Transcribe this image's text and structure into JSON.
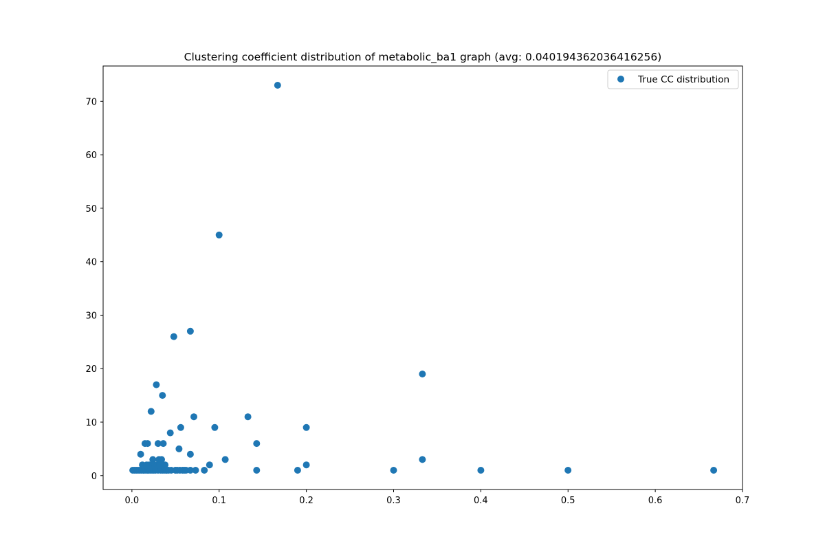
{
  "chart_data": {
    "type": "scatter",
    "title": "Clustering coefficient distribution of metabolic_ba1 graph (avg: 0.040194362036416256)",
    "xlabel": "",
    "ylabel": "",
    "xlim": [
      -0.033,
      0.7
    ],
    "ylim": [
      -2.6,
      76.6
    ],
    "xticks": [
      0.0,
      0.1,
      0.2,
      0.3,
      0.4,
      0.5,
      0.6,
      0.7
    ],
    "xtick_labels": [
      "0.0",
      "0.1",
      "0.2",
      "0.3",
      "0.4",
      "0.5",
      "0.6",
      "0.7"
    ],
    "yticks": [
      0,
      10,
      20,
      30,
      40,
      50,
      60,
      70
    ],
    "ytick_labels": [
      "0",
      "10",
      "20",
      "30",
      "40",
      "50",
      "60",
      "70"
    ],
    "grid": false,
    "legend": {
      "position": "top-right",
      "entries": [
        "True CC distribution"
      ]
    },
    "color": "#1f77b4",
    "series": [
      {
        "name": "True CC distribution",
        "points": [
          [
            0.001,
            1
          ],
          [
            0.003,
            1
          ],
          [
            0.005,
            1
          ],
          [
            0.007,
            1
          ],
          [
            0.009,
            1
          ],
          [
            0.01,
            4
          ],
          [
            0.011,
            1
          ],
          [
            0.012,
            2
          ],
          [
            0.013,
            1
          ],
          [
            0.014,
            1
          ],
          [
            0.015,
            6
          ],
          [
            0.016,
            1
          ],
          [
            0.017,
            2
          ],
          [
            0.018,
            1
          ],
          [
            0.018,
            6
          ],
          [
            0.019,
            1
          ],
          [
            0.02,
            2
          ],
          [
            0.021,
            1
          ],
          [
            0.022,
            12
          ],
          [
            0.023,
            1
          ],
          [
            0.024,
            3
          ],
          [
            0.024,
            2
          ],
          [
            0.025,
            1
          ],
          [
            0.026,
            2
          ],
          [
            0.027,
            1
          ],
          [
            0.028,
            17
          ],
          [
            0.029,
            2
          ],
          [
            0.03,
            6
          ],
          [
            0.03,
            1
          ],
          [
            0.031,
            3
          ],
          [
            0.032,
            2
          ],
          [
            0.033,
            1
          ],
          [
            0.034,
            3
          ],
          [
            0.035,
            15
          ],
          [
            0.035,
            1
          ],
          [
            0.036,
            6
          ],
          [
            0.037,
            1
          ],
          [
            0.038,
            2
          ],
          [
            0.039,
            1
          ],
          [
            0.04,
            1
          ],
          [
            0.042,
            1
          ],
          [
            0.044,
            8
          ],
          [
            0.045,
            1
          ],
          [
            0.048,
            26
          ],
          [
            0.05,
            1
          ],
          [
            0.052,
            1
          ],
          [
            0.054,
            5
          ],
          [
            0.055,
            1
          ],
          [
            0.056,
            9
          ],
          [
            0.058,
            1
          ],
          [
            0.06,
            1
          ],
          [
            0.062,
            1
          ],
          [
            0.067,
            27
          ],
          [
            0.067,
            4
          ],
          [
            0.067,
            1
          ],
          [
            0.071,
            11
          ],
          [
            0.073,
            1
          ],
          [
            0.083,
            1
          ],
          [
            0.089,
            2
          ],
          [
            0.095,
            9
          ],
          [
            0.1,
            45
          ],
          [
            0.107,
            3
          ],
          [
            0.133,
            11
          ],
          [
            0.143,
            6
          ],
          [
            0.143,
            1
          ],
          [
            0.167,
            73
          ],
          [
            0.19,
            1
          ],
          [
            0.2,
            9
          ],
          [
            0.2,
            2
          ],
          [
            0.3,
            1
          ],
          [
            0.333,
            19
          ],
          [
            0.333,
            3
          ],
          [
            0.4,
            1
          ],
          [
            0.5,
            1
          ],
          [
            0.667,
            1
          ]
        ]
      }
    ]
  }
}
